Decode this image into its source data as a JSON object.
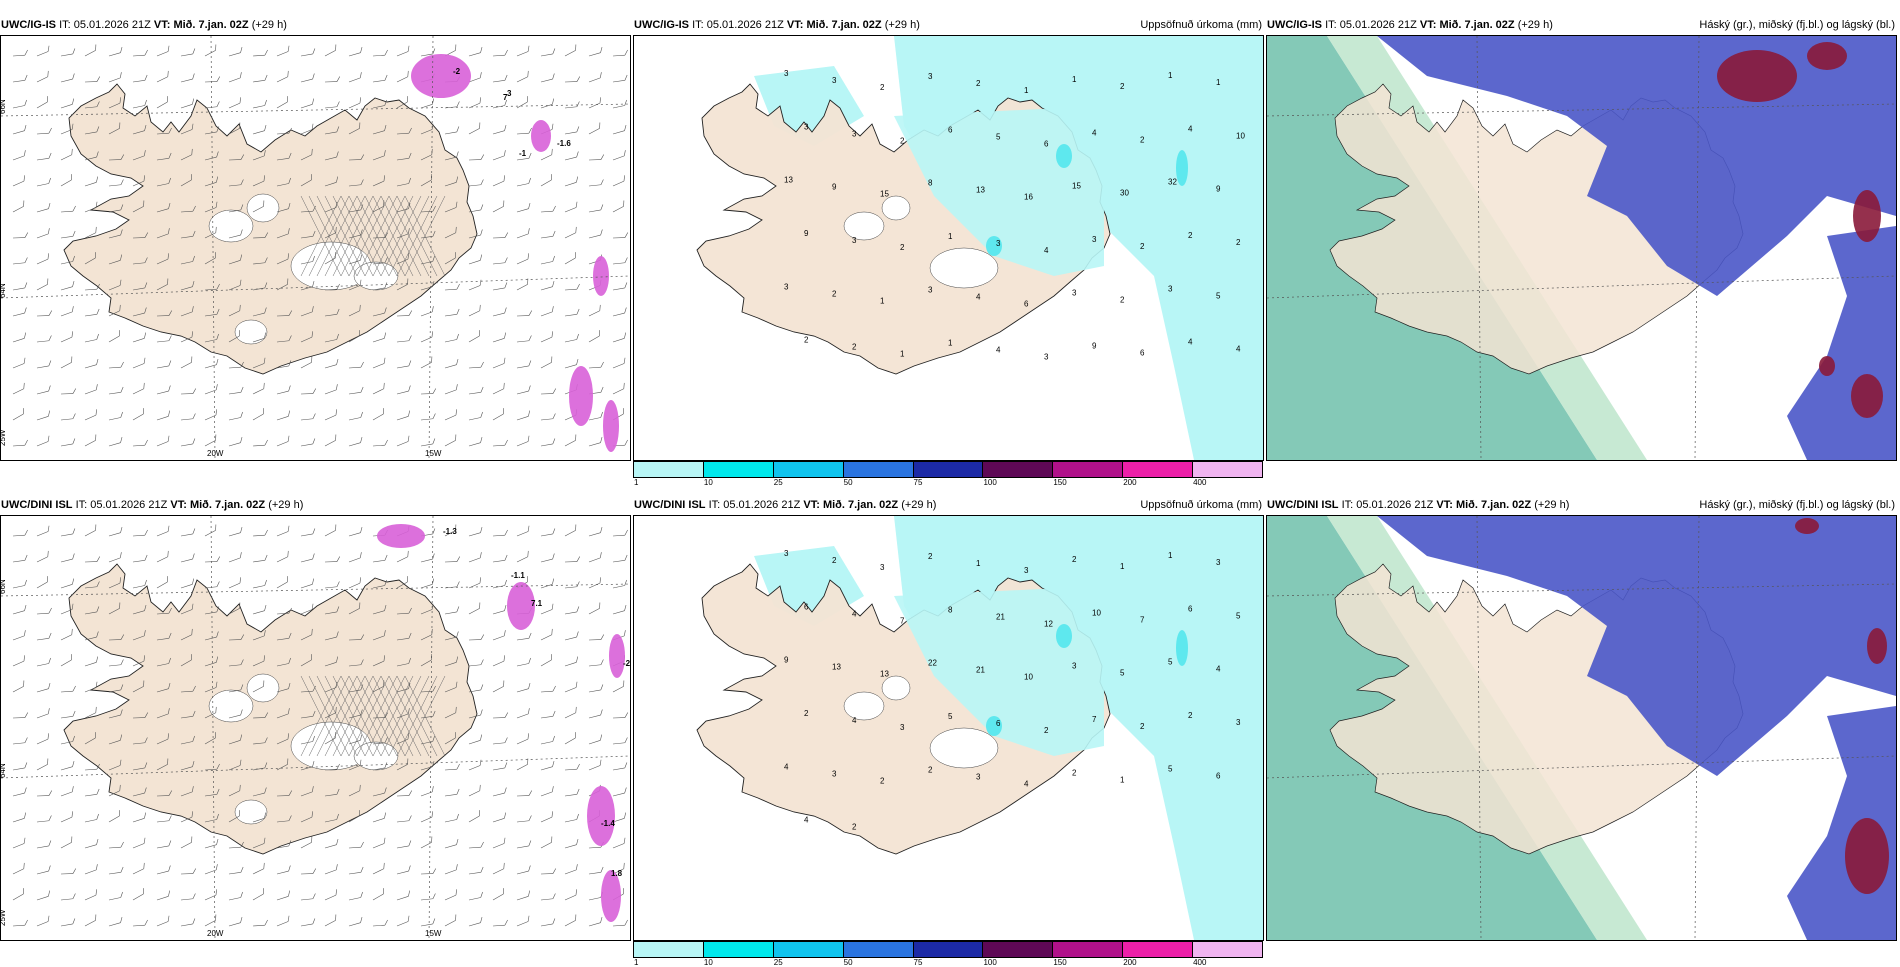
{
  "header": {
    "issue_label": "IT:",
    "issue_time": "05.01.2026 21Z",
    "valid_label": "VT:",
    "valid_time": "Mið. 7.jan. 02Z",
    "lead": "(+29 h)"
  },
  "rows": [
    {
      "model": "UWC/IG-IS"
    },
    {
      "model": "UWC/DINI ISL"
    }
  ],
  "panels": {
    "precip_title": "Uppsöfnuð úrkoma (mm)",
    "cloud_title": "Háský (gr.), miðský (fj.bl.) og lágský (bl.)"
  },
  "grid_labels": {
    "lat_66": "66N",
    "lat_64": "64N",
    "lon_20": "20W",
    "lon_15": "15W",
    "lon_25": "25W"
  },
  "precip_colorbar": {
    "ticks": [
      "1",
      "10",
      "25",
      "50",
      "75",
      "100",
      "150",
      "200",
      "400"
    ],
    "colors": [
      "#b8f6f6",
      "#00e8ec",
      "#10c4ee",
      "#2a74e0",
      "#1c2aa6",
      "#5e0856",
      "#b0118a",
      "#ec1fa8",
      "#f0b4f0"
    ]
  },
  "colors": {
    "land": "#f3e4d4",
    "precip_light": "#b8f6f6",
    "precip_mid": "#5ee8ee",
    "cloud_high_green": "#6fbfaa",
    "cloud_mid_blue": "#4a56c8",
    "cloud_low_red": "#8a1a3a",
    "pink": "#d861d8"
  },
  "precip_values": {
    "top": [
      {
        "t": "3"
      },
      {
        "t": "3"
      },
      {
        "t": "2"
      },
      {
        "t": "3"
      },
      {
        "t": "2"
      },
      {
        "t": "1"
      },
      {
        "t": "1"
      },
      {
        "t": "2"
      },
      {
        "t": "1"
      },
      {
        "t": "1"
      },
      {
        "t": "3"
      },
      {
        "t": "3"
      },
      {
        "t": "2"
      },
      {
        "t": "6"
      },
      {
        "t": "5"
      },
      {
        "t": "6"
      },
      {
        "t": "4"
      },
      {
        "t": "2"
      },
      {
        "t": "4"
      },
      {
        "t": "10"
      },
      {
        "t": "13"
      },
      {
        "t": "9"
      },
      {
        "t": "15"
      },
      {
        "t": "8"
      },
      {
        "t": "13"
      },
      {
        "t": "16"
      },
      {
        "t": "15"
      },
      {
        "t": "30"
      },
      {
        "t": "32"
      },
      {
        "t": "9"
      },
      {
        "t": "9"
      },
      {
        "t": "3"
      },
      {
        "t": "2"
      },
      {
        "t": "1"
      },
      {
        "t": "3"
      },
      {
        "t": "4"
      },
      {
        "t": "3"
      },
      {
        "t": "2"
      },
      {
        "t": "2"
      },
      {
        "t": "2"
      },
      {
        "t": "3"
      },
      {
        "t": "2"
      },
      {
        "t": "1"
      },
      {
        "t": "3"
      },
      {
        "t": "4"
      },
      {
        "t": "6"
      },
      {
        "t": "3"
      },
      {
        "t": "2"
      },
      {
        "t": "3"
      },
      {
        "t": "5"
      },
      {
        "t": "2"
      },
      {
        "t": "2"
      },
      {
        "t": "1"
      },
      {
        "t": "1"
      },
      {
        "t": "4"
      },
      {
        "t": "3"
      },
      {
        "t": "9"
      },
      {
        "t": "6"
      },
      {
        "t": "4"
      },
      {
        "t": "4"
      }
    ],
    "bottom": [
      {
        "t": "3"
      },
      {
        "t": "2"
      },
      {
        "t": "3"
      },
      {
        "t": "2"
      },
      {
        "t": "1"
      },
      {
        "t": "3"
      },
      {
        "t": "2"
      },
      {
        "t": "1"
      },
      {
        "t": "1"
      },
      {
        "t": "3"
      },
      {
        "t": "6"
      },
      {
        "t": "4"
      },
      {
        "t": "7"
      },
      {
        "t": "8"
      },
      {
        "t": "21"
      },
      {
        "t": "12"
      },
      {
        "t": "10"
      },
      {
        "t": "7"
      },
      {
        "t": "6"
      },
      {
        "t": "5"
      },
      {
        "t": "9"
      },
      {
        "t": "13"
      },
      {
        "t": "13"
      },
      {
        "t": "22"
      },
      {
        "t": "21"
      },
      {
        "t": "10"
      },
      {
        "t": "3"
      },
      {
        "t": "5"
      },
      {
        "t": "5"
      },
      {
        "t": "4"
      },
      {
        "t": "2"
      },
      {
        "t": "4"
      },
      {
        "t": "3"
      },
      {
        "t": "5"
      },
      {
        "t": "6"
      },
      {
        "t": "2"
      },
      {
        "t": "7"
      },
      {
        "t": "2"
      },
      {
        "t": "2"
      },
      {
        "t": "3"
      },
      {
        "t": "4"
      },
      {
        "t": "3"
      },
      {
        "t": "2"
      },
      {
        "t": "2"
      },
      {
        "t": "3"
      },
      {
        "t": "4"
      },
      {
        "t": "2"
      },
      {
        "t": "1"
      },
      {
        "t": "5"
      },
      {
        "t": "6"
      },
      {
        "t": "4"
      },
      {
        "t": "2"
      }
    ]
  },
  "wind_labels": {
    "top": [
      "-2",
      "3",
      "-1",
      "7",
      "-1.6"
    ],
    "bottom": [
      "-1.3",
      "-1.1",
      "7.1",
      "-2",
      "-1.4",
      "1.8"
    ]
  }
}
